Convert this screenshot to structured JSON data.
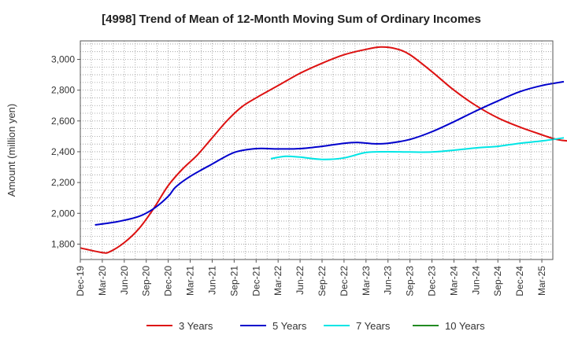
{
  "chart_data": {
    "type": "line",
    "title": "[4998]  Trend of Mean of 12-Month Moving Sum of Ordinary Incomes",
    "xlabel": "",
    "ylabel": "Amount (million yen)",
    "ylim": [
      1700,
      3120
    ],
    "grid": true,
    "legend_position": "bottom",
    "x_tick_labels": [
      "Dec-19",
      "Mar-20",
      "Jun-20",
      "Sep-20",
      "Dec-20",
      "Mar-21",
      "Jun-21",
      "Sep-21",
      "Dec-21",
      "Mar-22",
      "Jun-22",
      "Sep-22",
      "Dec-22",
      "Mar-23",
      "Jun-23",
      "Sep-23",
      "Dec-23",
      "Mar-24",
      "Jun-24",
      "Sep-24",
      "Dec-24",
      "Mar-25"
    ],
    "y_ticks": [
      1800,
      2000,
      2200,
      2400,
      2600,
      2800,
      3000
    ],
    "y_tick_labels": [
      "1,800",
      "2,000",
      "2,200",
      "2,400",
      "2,600",
      "2,800",
      "3,000"
    ],
    "series": [
      {
        "name": "3 Years",
        "color": "#dd1111",
        "points": [
          [
            0,
            1775
          ],
          [
            3,
            1745
          ],
          [
            4,
            1750
          ],
          [
            6,
            1810
          ],
          [
            8,
            1900
          ],
          [
            10,
            2030
          ],
          [
            12,
            2180
          ],
          [
            14,
            2290
          ],
          [
            16,
            2380
          ],
          [
            18,
            2490
          ],
          [
            20,
            2600
          ],
          [
            22,
            2690
          ],
          [
            24,
            2750
          ],
          [
            27,
            2830
          ],
          [
            30,
            2910
          ],
          [
            33,
            2975
          ],
          [
            36,
            3030
          ],
          [
            39,
            3065
          ],
          [
            41,
            3080
          ],
          [
            43,
            3070
          ],
          [
            45,
            3030
          ],
          [
            48,
            2920
          ],
          [
            51,
            2800
          ],
          [
            54,
            2700
          ],
          [
            57,
            2620
          ],
          [
            60,
            2560
          ],
          [
            63,
            2510
          ],
          [
            65,
            2480
          ],
          [
            67,
            2470
          ],
          [
            69,
            2480
          ],
          [
            70,
            2495
          ]
        ]
      },
      {
        "name": "5 Years",
        "color": "#0000cc",
        "points": [
          [
            2,
            1925
          ],
          [
            5,
            1945
          ],
          [
            8,
            1980
          ],
          [
            10,
            2030
          ],
          [
            12,
            2110
          ],
          [
            13,
            2170
          ],
          [
            15,
            2240
          ],
          [
            18,
            2320
          ],
          [
            21,
            2395
          ],
          [
            24,
            2420
          ],
          [
            27,
            2418
          ],
          [
            30,
            2420
          ],
          [
            33,
            2435
          ],
          [
            36,
            2455
          ],
          [
            38,
            2460
          ],
          [
            40,
            2452
          ],
          [
            42,
            2455
          ],
          [
            45,
            2480
          ],
          [
            48,
            2530
          ],
          [
            51,
            2595
          ],
          [
            54,
            2665
          ],
          [
            57,
            2730
          ],
          [
            60,
            2790
          ],
          [
            63,
            2830
          ],
          [
            66,
            2855
          ]
        ]
      },
      {
        "name": "7 Years",
        "color": "#00e5e5",
        "points": [
          [
            26,
            2355
          ],
          [
            28,
            2370
          ],
          [
            30,
            2365
          ],
          [
            33,
            2350
          ],
          [
            36,
            2360
          ],
          [
            39,
            2395
          ],
          [
            42,
            2400
          ],
          [
            45,
            2398
          ],
          [
            48,
            2398
          ],
          [
            51,
            2410
          ],
          [
            54,
            2425
          ],
          [
            57,
            2435
          ],
          [
            60,
            2455
          ],
          [
            63,
            2470
          ],
          [
            66,
            2490
          ]
        ]
      },
      {
        "name": "10 Years",
        "color": "#228b22",
        "points": []
      }
    ]
  }
}
